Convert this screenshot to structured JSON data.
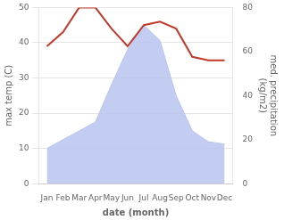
{
  "chart_data": {
    "type": "line",
    "xlabel": "date (month)",
    "ylabel": "max temp (C)",
    "y2label": "med. precipitation\n(kg/m2)",
    "categories": [
      "Jan",
      "Feb",
      "Mar",
      "Apr",
      "May",
      "Jun",
      "Jul",
      "Aug",
      "Sep",
      "Oct",
      "Nov",
      "Dec"
    ],
    "series": [
      {
        "type": "area",
        "color": "#b8c4ee",
        "axis": "y2",
        "values": [
          16,
          20,
          24,
          28,
          45,
          61,
          72,
          65,
          40,
          24,
          19,
          18
        ]
      },
      {
        "type": "line",
        "color": "#c0392b",
        "values": [
          39,
          43,
          50,
          50,
          44,
          39,
          45,
          46,
          44,
          36,
          35,
          35
        ]
      }
    ],
    "ylim": [
      0,
      50
    ],
    "yticks": [
      0,
      10,
      20,
      30,
      40,
      50
    ],
    "y2lim": [
      0,
      80
    ],
    "y2ticks": [
      0,
      20,
      40,
      60,
      80
    ],
    "grid": true
  }
}
